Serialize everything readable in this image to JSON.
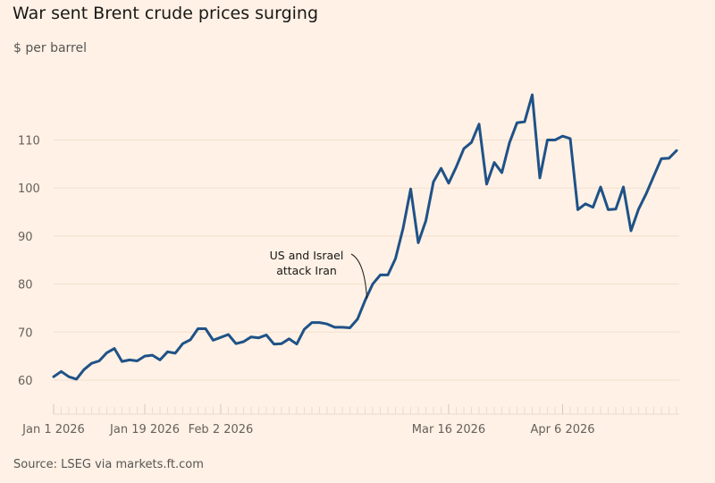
{
  "chart_data": {
    "type": "line",
    "title": "War sent Brent crude prices surging",
    "subtitle": "$ per barrel",
    "source": "Source: LSEG via markets.ft.com",
    "ylim": [
      55,
      120
    ],
    "y_ticks": [
      60,
      70,
      80,
      90,
      100,
      110
    ],
    "x_ticks": [
      {
        "label": "Jan 1 2026",
        "index": 0
      },
      {
        "label": "Jan 19 2026",
        "index": 12
      },
      {
        "label": "Feb 2 2026",
        "index": 22
      },
      {
        "label": "Mar 16 2026",
        "index": 52
      },
      {
        "label": "Apr 6 2026",
        "index": 67
      }
    ],
    "grid": true,
    "line_color": "#1f5287",
    "background": "#fff1e5",
    "annotation": {
      "text_line1": "US and Israel",
      "text_line2": "attack Iran",
      "index": 41
    },
    "values": [
      60.7,
      61.8,
      60.7,
      60.2,
      62.2,
      63.5,
      64,
      65.7,
      66.6,
      63.9,
      64.2,
      64,
      65,
      65.2,
      64.2,
      65.9,
      65.6,
      67.6,
      68.4,
      70.7,
      70.7,
      68.3,
      68.9,
      69.5,
      67.6,
      68,
      69,
      68.8,
      69.4,
      67.5,
      67.6,
      68.6,
      67.5,
      70.6,
      72,
      72,
      71.7,
      71,
      71,
      70.9,
      72.7,
      76.6,
      80,
      81.9,
      81.9,
      85.3,
      91.6,
      99.8,
      88.6,
      93.2,
      101.3,
      104.1,
      101,
      104.4,
      108.2,
      109.5,
      113.3,
      100.8,
      105.3,
      103.2,
      109.4,
      113.6,
      113.8,
      119.4,
      102.1,
      110,
      110,
      110.8,
      110.3,
      95.5,
      96.7,
      96,
      100.2,
      95.5,
      95.6,
      100.2,
      91.1,
      95.6,
      98.8,
      102.5,
      106.1,
      106.2,
      107.8
    ]
  }
}
